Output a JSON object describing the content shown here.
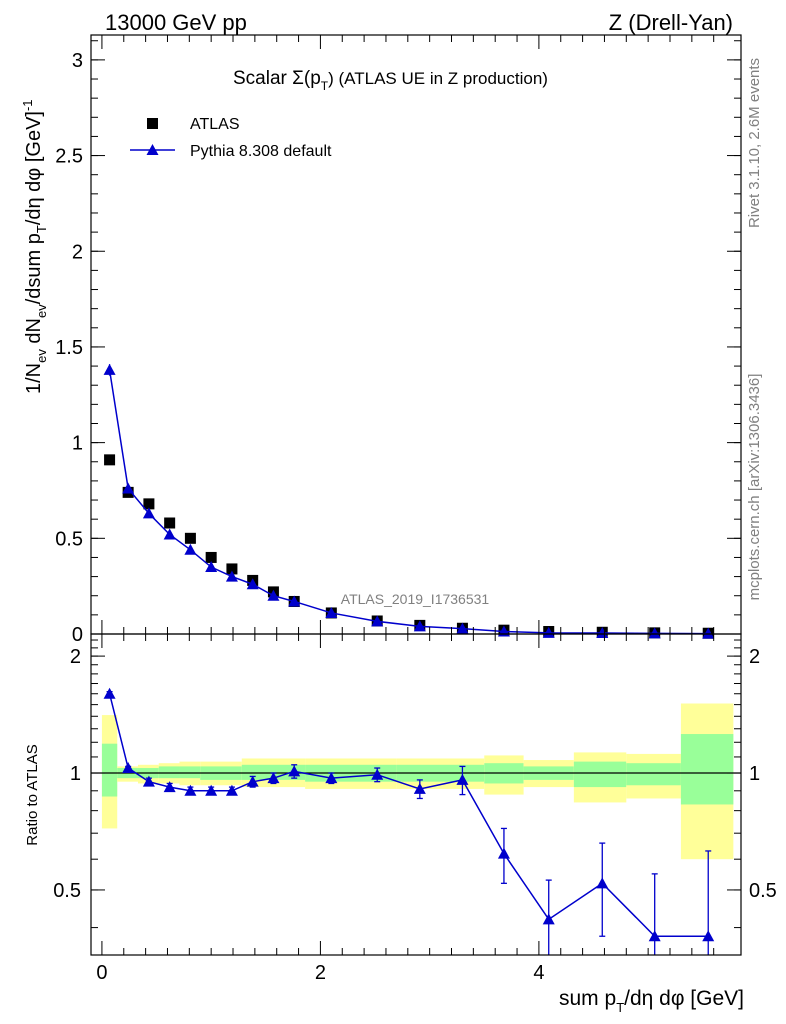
{
  "header": {
    "energy": "13000 GeV pp",
    "process": "Z (Drell-Yan)"
  },
  "side": {
    "rivet": "Rivet 3.1.10,  2.6M events",
    "mcplots": "mcplots.cern.ch [arXiv:1306.3436]"
  },
  "chart_data": [
    {
      "type": "scatter",
      "title": "Scalar Σ(pT) (ATLAS UE in Z production)",
      "title_main": "Scalar Σ(p",
      "title_sub": "T",
      "title_rest": ") (ATLAS UE in Z production)",
      "analysis_label": "ATLAS_2019_I1736531",
      "ylabel": "1/Nev dNev/dsum pT/dη dφ [GeV]^-1",
      "ylabel_parts": {
        "a": "1/N",
        "b": "ev",
        "c": " dN",
        "d": "ev",
        "e": "/dsum p",
        "f": "T",
        "g": "/dη dφ  [GeV]",
        "h": "-1"
      },
      "xlim": [
        -0.1,
        5.85
      ],
      "ylim": [
        0,
        3.13
      ],
      "yticks": [
        "0",
        "0.5",
        "1",
        "1.5",
        "2",
        "2.5",
        "3"
      ],
      "ytick_values": [
        0,
        0.5,
        1,
        1.5,
        2,
        2.5,
        3
      ],
      "series": [
        {
          "name": "ATLAS",
          "marker": "square",
          "color": "#000000",
          "x": [
            0.07,
            0.24,
            0.43,
            0.62,
            0.81,
            1.0,
            1.19,
            1.38,
            1.57,
            1.76,
            2.1,
            2.52,
            2.91,
            3.3,
            3.68,
            4.09,
            4.58,
            5.06,
            5.55
          ],
          "y": [
            0.91,
            0.74,
            0.68,
            0.58,
            0.5,
            0.4,
            0.34,
            0.28,
            0.22,
            0.17,
            0.11,
            0.068,
            0.045,
            0.03,
            0.02,
            0.013,
            0.009,
            0.006,
            0.004
          ]
        },
        {
          "name": "Pythia 8.308 default",
          "marker": "triangle",
          "color": "#0000cc",
          "x": [
            0.07,
            0.24,
            0.43,
            0.62,
            0.81,
            1.0,
            1.19,
            1.38,
            1.57,
            1.76,
            2.1,
            2.52,
            2.91,
            3.3,
            3.68,
            4.09,
            4.58,
            5.06,
            5.55
          ],
          "y": [
            1.38,
            0.76,
            0.63,
            0.52,
            0.44,
            0.35,
            0.3,
            0.26,
            0.2,
            0.17,
            0.11,
            0.066,
            0.04,
            0.028,
            0.013,
            0.006,
            0.005,
            0.003,
            0.002
          ],
          "yerr": [
            0.03,
            0.01,
            0.01,
            0.01,
            0.01,
            0.01,
            0.01,
            0.01,
            0.005,
            0.005,
            0.004,
            0.003,
            0.002,
            0.002,
            0.002,
            0.001,
            0.001,
            0.001,
            0.001
          ]
        }
      ]
    },
    {
      "type": "line",
      "ylabel": "Ratio to ATLAS",
      "xlabel": "sum pT/dη dφ [GeV]",
      "xlabel_parts": {
        "a": "sum p",
        "b": "T",
        "c": "/dη dφ [GeV]"
      },
      "xlim": [
        -0.1,
        5.85
      ],
      "ylim": [
        0.34,
        2.28
      ],
      "xticks": [
        "0",
        "2",
        "4"
      ],
      "xtick_values": [
        0,
        2,
        4
      ],
      "yticks": [
        "0.5",
        "1",
        "2"
      ],
      "ytick_values": [
        0.5,
        1,
        2
      ],
      "bins": [
        {
          "lo": 0.0,
          "hi": 0.14,
          "tot_lo": 0.72,
          "tot_hi": 1.41,
          "stat_lo": 0.87,
          "stat_hi": 1.19
        },
        {
          "lo": 0.14,
          "hi": 0.33,
          "tot_lo": 0.95,
          "tot_hi": 1.04,
          "stat_lo": 0.97,
          "stat_hi": 1.03
        },
        {
          "lo": 0.33,
          "hi": 0.52,
          "tot_lo": 0.94,
          "tot_hi": 1.05,
          "stat_lo": 0.97,
          "stat_hi": 1.03
        },
        {
          "lo": 0.52,
          "hi": 0.71,
          "tot_lo": 0.94,
          "tot_hi": 1.06,
          "stat_lo": 0.97,
          "stat_hi": 1.04
        },
        {
          "lo": 0.71,
          "hi": 0.9,
          "tot_lo": 0.93,
          "tot_hi": 1.07,
          "stat_lo": 0.97,
          "stat_hi": 1.04
        },
        {
          "lo": 0.9,
          "hi": 1.28,
          "tot_lo": 0.93,
          "tot_hi": 1.07,
          "stat_lo": 0.96,
          "stat_hi": 1.04
        },
        {
          "lo": 1.28,
          "hi": 1.86,
          "tot_lo": 0.92,
          "tot_hi": 1.09,
          "stat_lo": 0.96,
          "stat_hi": 1.05
        },
        {
          "lo": 1.86,
          "hi": 2.7,
          "tot_lo": 0.91,
          "tot_hi": 1.09,
          "stat_lo": 0.95,
          "stat_hi": 1.05
        },
        {
          "lo": 2.7,
          "hi": 3.5,
          "tot_lo": 0.91,
          "tot_hi": 1.09,
          "stat_lo": 0.95,
          "stat_hi": 1.05
        },
        {
          "lo": 3.5,
          "hi": 3.86,
          "tot_lo": 0.88,
          "tot_hi": 1.11,
          "stat_lo": 0.94,
          "stat_hi": 1.06
        },
        {
          "lo": 3.86,
          "hi": 4.32,
          "tot_lo": 0.92,
          "tot_hi": 1.08,
          "stat_lo": 0.96,
          "stat_hi": 1.04
        },
        {
          "lo": 4.32,
          "hi": 4.8,
          "tot_lo": 0.84,
          "tot_hi": 1.13,
          "stat_lo": 0.92,
          "stat_hi": 1.07
        },
        {
          "lo": 4.8,
          "hi": 5.3,
          "tot_lo": 0.86,
          "tot_hi": 1.12,
          "stat_lo": 0.93,
          "stat_hi": 1.06
        },
        {
          "lo": 5.3,
          "hi": 5.78,
          "tot_lo": 0.6,
          "tot_hi": 1.51,
          "stat_lo": 0.83,
          "stat_hi": 1.26
        }
      ],
      "series": [
        {
          "name": "Pythia 8.308 default / ATLAS",
          "color": "#0000cc",
          "x": [
            0.07,
            0.24,
            0.43,
            0.62,
            0.81,
            1.0,
            1.19,
            1.38,
            1.57,
            1.76,
            2.1,
            2.52,
            2.91,
            3.3,
            3.68,
            4.09,
            4.58,
            5.06,
            5.55
          ],
          "y": [
            1.6,
            1.03,
            0.95,
            0.92,
            0.9,
            0.9,
            0.9,
            0.95,
            0.97,
            1.01,
            0.97,
            0.99,
            0.91,
            0.96,
            0.62,
            0.42,
            0.52,
            0.38,
            0.38
          ],
          "yerr": [
            0.02,
            0.01,
            0.02,
            0.02,
            0.02,
            0.02,
            0.02,
            0.03,
            0.03,
            0.04,
            0.03,
            0.04,
            0.05,
            0.08,
            0.1,
            0.11,
            0.14,
            0.17,
            0.25
          ]
        }
      ]
    }
  ]
}
